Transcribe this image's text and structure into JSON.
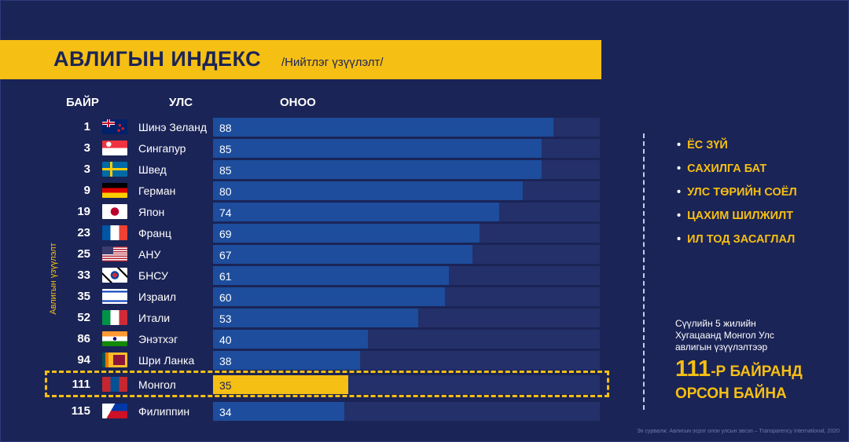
{
  "header": {
    "title": "АВЛИГЫН ИНДЕКС",
    "subtitle": "/Нийтлэг үзүүлэлт/"
  },
  "columns": {
    "rank": "БАЙР",
    "country": "УЛС",
    "score": "ОНОО"
  },
  "side_label": "Авлигын үзүүлэлт",
  "chart_data": {
    "type": "bar",
    "orientation": "horizontal",
    "xlim": [
      0,
      100
    ],
    "rows": [
      {
        "rank": "1",
        "country": "Шинэ Зеланд",
        "score": 88,
        "score_label": "88",
        "flag": "flag-new-zealand"
      },
      {
        "rank": "3",
        "country": "Сингапур",
        "score": 85,
        "score_label": "85",
        "flag": "flag-singapore"
      },
      {
        "rank": "3",
        "country": "Швед",
        "score": 85,
        "score_label": "85",
        "flag": "flag-sweden"
      },
      {
        "rank": "9",
        "country": "Герман",
        "score": 80,
        "score_label": "80",
        "flag": "flag-germany"
      },
      {
        "rank": "19",
        "country": "Япон",
        "score": 74,
        "score_label": "74",
        "flag": "flag-japan"
      },
      {
        "rank": "23",
        "country": "Франц",
        "score": 69,
        "score_label": "69",
        "flag": "flag-france"
      },
      {
        "rank": "25",
        "country": "АНУ",
        "score": 67,
        "score_label": "67",
        "flag": "flag-usa"
      },
      {
        "rank": "33",
        "country": "БНСУ",
        "score": 61,
        "score_label": "61",
        "flag": "flag-south-korea"
      },
      {
        "rank": "35",
        "country": "Израил",
        "score": 60,
        "score_label": "60",
        "flag": "flag-israel"
      },
      {
        "rank": "52",
        "country": "Итали",
        "score": 53,
        "score_label": "53",
        "flag": "flag-italy"
      },
      {
        "rank": "86",
        "country": "Энэтхэг",
        "score": 40,
        "score_label": "40",
        "flag": "flag-india"
      },
      {
        "rank": "94",
        "country": "Шри Ланка",
        "score": 38,
        "score_label": "38",
        "flag": "flag-sri-lanka"
      },
      {
        "rank": "111",
        "country": "Монгол",
        "score": 35,
        "score_label": "35",
        "flag": "flag-mongolia",
        "highlight": true
      },
      {
        "rank": "115",
        "country": "Филиппин",
        "score": 34,
        "score_label": "34",
        "flag": "flag-philippines"
      }
    ]
  },
  "bullets": [
    "ЁС ЗҮЙ",
    "САХИЛГА БАТ",
    "УЛС ТӨРИЙН СОЁЛ",
    "ЦАХИМ ШИЛЖИЛТ",
    "ИЛ ТОД ЗАСАГЛАЛ"
  ],
  "note": {
    "lines": [
      "Сүүлийн 5 жилийн",
      "Хугацаанд Монгол Улс",
      "авлигын үзүүлэлтээр"
    ],
    "big_number": "111",
    "big_suffix": "-Р БАЙРАНД",
    "big_line2": "ОРСОН БАЙНА"
  },
  "source": "Эх сурвалж: Авлигын эсрэг олон улсын эвсэл – Transparency International, 2020",
  "colors": {
    "background": "#1b2456",
    "accent": "#f6bf14",
    "bar": "#1d4d9c",
    "track": "#24306a"
  }
}
